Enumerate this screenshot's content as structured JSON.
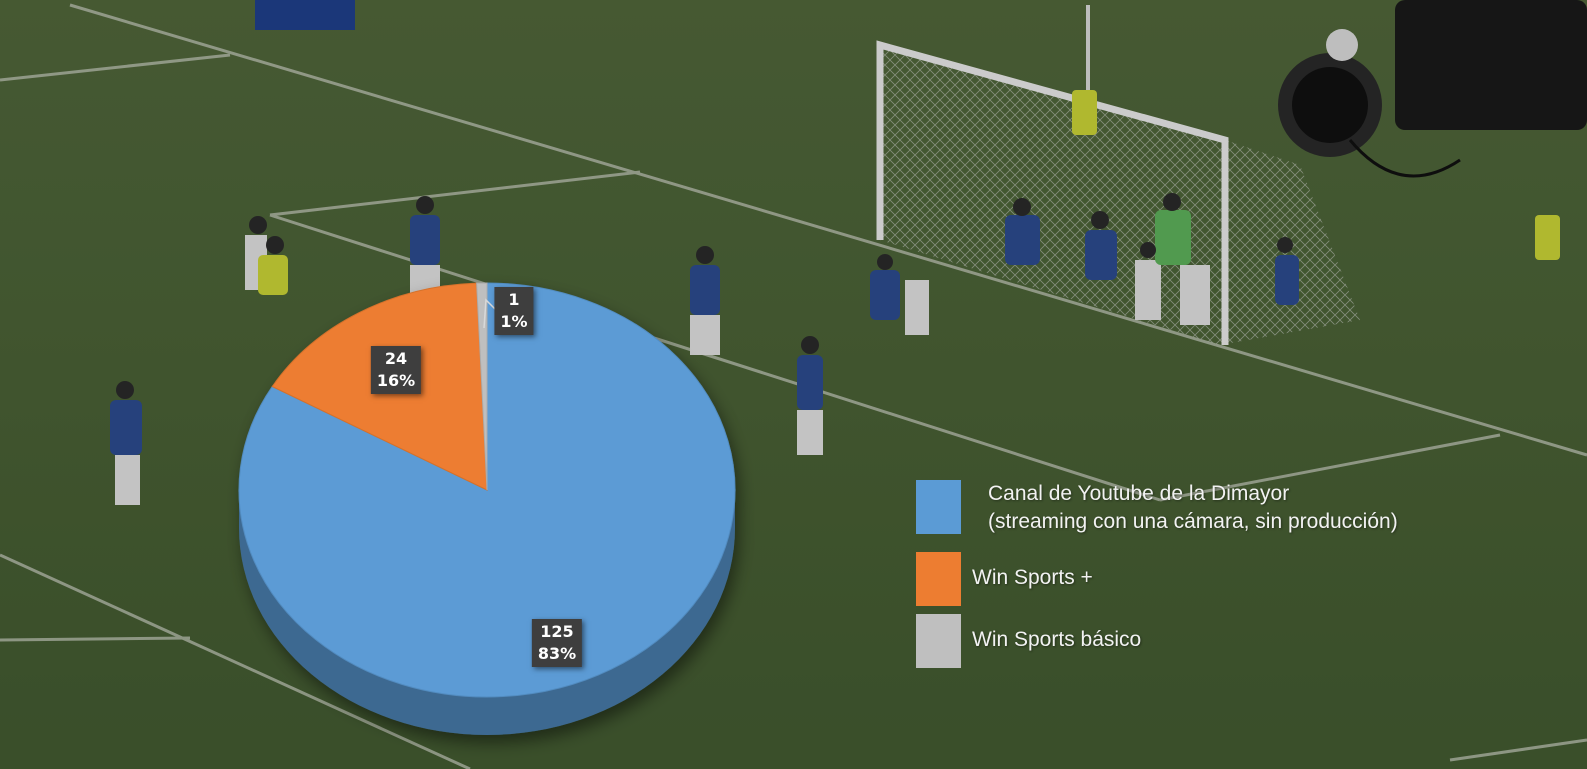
{
  "chart_data": {
    "type": "pie",
    "style": "3d",
    "slices": [
      {
        "label": "Canal de Youtube de la Dimayor (streaming con una cámara, sin producción)",
        "value": 125,
        "percent": "83%",
        "color": "#5b9bd5"
      },
      {
        "label": "Win Sports +",
        "value": 24,
        "percent": "16%",
        "color": "#ed7d31"
      },
      {
        "label": "Win Sports básico",
        "value": 1,
        "percent": "1%",
        "color": "#bfbfbf"
      }
    ],
    "legend_position": "right"
  },
  "legend": {
    "items": [
      {
        "lines": [
          "Canal de Youtube de la Dimayor",
          "(streaming con una cámara, sin producción)"
        ],
        "color": "#5b9bd5"
      },
      {
        "lines": [
          "Win Sports +"
        ],
        "color": "#ed7d31"
      },
      {
        "lines": [
          "Win Sports básico"
        ],
        "color": "#bfbfbf"
      }
    ]
  },
  "data_labels": [
    {
      "value": "125",
      "percent": "83%"
    },
    {
      "value": "24",
      "percent": "16%"
    },
    {
      "value": "1",
      "percent": "1%"
    }
  ],
  "background": {
    "description_icon": "soccer-pitch-photo",
    "pitch_color": "#4d6a35"
  }
}
